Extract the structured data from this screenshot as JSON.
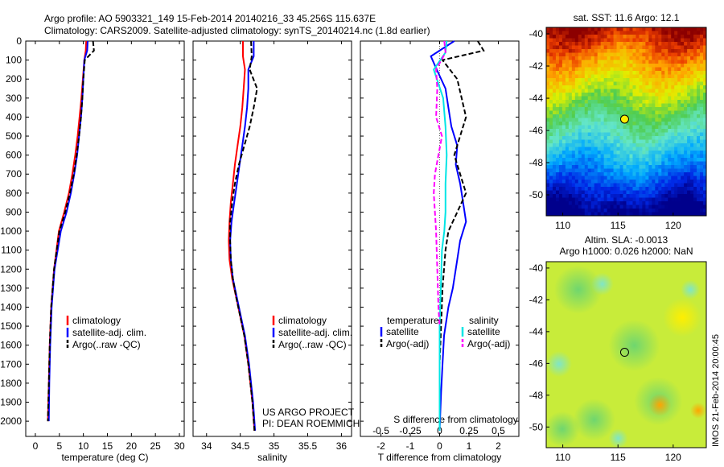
{
  "header": {
    "line1": "Argo profile: AO 5903321_149 15-Feb-2014 20140216_33 45.256S 115.637E",
    "line2": "Climatology: CARS2009. Satellite-adjusted climatology: synTS_20140214.nc (1.8d earlier)"
  },
  "credit": {
    "line1": "US ARGO PROJECT",
    "line2": "PI: DEAN ROEMMICH"
  },
  "side_label": "IMOS 21-Feb-2014 20:00:45",
  "legend_ts": [
    "climatology",
    "satellite-adj. clim.",
    "Argo(..raw -QC)"
  ],
  "legend_diff": {
    "temp_title": "temperature",
    "sal_title": "salinity",
    "items": [
      "satellite",
      "Argo(-adj)",
      "satellite",
      "Argo(-adj)"
    ]
  },
  "colors": {
    "climatology": "#ff0000",
    "satellite": "#0000ff",
    "argo": "#000000",
    "sal_satellite": "#00e5e5",
    "sal_argo": "#ff00ff"
  },
  "chart_data": [
    {
      "type": "line",
      "name": "temperature",
      "xlabel": "temperature (deg C)",
      "ylabel": "",
      "xlim": [
        -2,
        31
      ],
      "ylim": [
        2080,
        0
      ],
      "xticks": [
        0,
        5,
        10,
        15,
        20,
        25,
        30
      ],
      "yticks": [
        0,
        100,
        200,
        300,
        400,
        500,
        600,
        700,
        800,
        900,
        1000,
        1100,
        1200,
        1300,
        1400,
        1500,
        1600,
        1700,
        1800,
        1900,
        2000
      ],
      "series": [
        {
          "name": "climatology",
          "x": [
            10.6,
            10.5,
            10.2,
            9.9,
            9.6,
            9.2,
            8.8,
            8.3,
            7.7,
            7.0,
            6.0,
            4.9,
            3.9,
            3.3,
            3.0,
            2.8,
            2.6
          ],
          "y": [
            0,
            50,
            100,
            200,
            300,
            400,
            500,
            600,
            700,
            800,
            900,
            1000,
            1200,
            1400,
            1600,
            1800,
            2000
          ]
        },
        {
          "name": "satellite-adj. clim.",
          "x": [
            10.9,
            10.8,
            10.2,
            10.0,
            9.8,
            9.5,
            9.1,
            8.7,
            8.1,
            7.4,
            6.5,
            5.3,
            4.0,
            3.4,
            3.1,
            2.9,
            2.8
          ],
          "y": [
            0,
            50,
            100,
            200,
            300,
            400,
            500,
            600,
            700,
            800,
            900,
            1000,
            1200,
            1400,
            1600,
            1800,
            2000
          ]
        },
        {
          "name": "Argo(..raw -QC)",
          "dashed": true,
          "x": [
            12.0,
            12.2,
            10.3,
            10.0,
            9.8,
            9.5,
            9.1,
            8.6,
            8.0,
            7.2,
            6.2,
            5.0,
            3.9,
            3.3,
            3.0,
            2.8,
            2.6
          ],
          "y": [
            0,
            50,
            100,
            200,
            300,
            400,
            500,
            600,
            700,
            800,
            900,
            1000,
            1200,
            1400,
            1600,
            1800,
            2000
          ]
        }
      ]
    },
    {
      "type": "line",
      "name": "salinity",
      "xlabel": "salinity",
      "ylabel": "",
      "xlim": [
        33.8,
        36.15
      ],
      "ylim": [
        2080,
        0
      ],
      "xticks": [
        34,
        34.5,
        35,
        35.5,
        36
      ],
      "yticks": [
        0,
        100,
        200,
        300,
        400,
        500,
        600,
        700,
        800,
        900,
        1000,
        1100,
        1200,
        1300,
        1400,
        1500,
        1600,
        1700,
        1800,
        1900,
        2000
      ],
      "series": [
        {
          "name": "climatology",
          "x": [
            34.54,
            34.54,
            34.57,
            34.55,
            34.53,
            34.5,
            34.46,
            34.42,
            34.39,
            34.36,
            34.34,
            34.33,
            34.34,
            34.38,
            34.44,
            34.5,
            34.56,
            34.62,
            34.68,
            34.71
          ],
          "y": [
            0,
            80,
            150,
            250,
            350,
            450,
            550,
            650,
            750,
            850,
            950,
            1050,
            1150,
            1250,
            1350,
            1450,
            1550,
            1700,
            1900,
            2050
          ]
        },
        {
          "name": "satellite-adj. clim.",
          "x": [
            34.7,
            34.7,
            34.62,
            34.62,
            34.6,
            34.57,
            34.53,
            34.49,
            34.45,
            34.41,
            34.37,
            34.35,
            34.36,
            34.39,
            34.45,
            34.51,
            34.57,
            34.63,
            34.69,
            34.72
          ],
          "y": [
            0,
            80,
            150,
            250,
            350,
            450,
            550,
            650,
            750,
            850,
            950,
            1050,
            1150,
            1250,
            1350,
            1450,
            1550,
            1700,
            1900,
            2050
          ]
        },
        {
          "name": "Argo(..raw -QC)",
          "dashed": true,
          "x": [
            34.66,
            34.67,
            34.64,
            34.75,
            34.7,
            34.64,
            34.56,
            34.48,
            34.42,
            34.38,
            34.35,
            34.35,
            34.36,
            34.39,
            34.44,
            34.5,
            34.56,
            34.62,
            34.68,
            34.71
          ],
          "y": [
            0,
            80,
            150,
            250,
            350,
            450,
            550,
            650,
            750,
            850,
            950,
            1050,
            1150,
            1250,
            1350,
            1450,
            1550,
            1700,
            1900,
            2050
          ]
        }
      ]
    },
    {
      "type": "line",
      "name": "difference from climatology",
      "xlabel": "T difference from climatology",
      "x2label": "S difference from climatology",
      "ylabel": "",
      "xlim": [
        -2.7,
        2.7
      ],
      "x2lim": [
        -0.675,
        0.675
      ],
      "ylim": [
        2080,
        0
      ],
      "xticks": [
        -2,
        -1,
        0,
        1,
        2
      ],
      "x2ticks": [
        -0.5,
        -0.25,
        0,
        0.25,
        0.5
      ],
      "x2ticklabels": [
        "-0.5",
        "-0.25",
        "0",
        "0.25",
        "0.5"
      ],
      "yticks": [
        0,
        100,
        200,
        300,
        400,
        500,
        600,
        700,
        800,
        900,
        1000,
        1100,
        1200,
        1300,
        1400,
        1500,
        1600,
        1700,
        1800,
        1900,
        2000
      ],
      "series": [
        {
          "name": "temperature satellite",
          "x": [
            0.5,
            -0.3,
            -0.1,
            0.2,
            0.3,
            0.4,
            0.6,
            0.55,
            0.7,
            0.8,
            0.9,
            0.7,
            0.6,
            0.45,
            0.3,
            0.15,
            0.1,
            0.05,
            0.0
          ],
          "y": [
            0,
            80,
            150,
            250,
            350,
            450,
            550,
            650,
            750,
            850,
            950,
            1050,
            1150,
            1300,
            1400,
            1550,
            1700,
            1850,
            2050
          ]
        },
        {
          "name": "temperature Argo(-adj)",
          "dashed": true,
          "x": [
            1.3,
            1.5,
            0.1,
            0.6,
            0.9,
            0.7,
            0.5,
            0.7,
            0.9,
            0.6,
            0.3,
            0.2,
            0.1,
            0.05,
            0.0
          ],
          "y": [
            0,
            50,
            100,
            200,
            400,
            500,
            600,
            700,
            800,
            900,
            1000,
            1100,
            1300,
            1500,
            1700
          ]
        },
        {
          "name": "salinity satellite",
          "x": [
            0.06,
            0.05,
            -0.05,
            0.03,
            0.05,
            0.06,
            0.05,
            0.05,
            0.04,
            0.02,
            0.01,
            0.0,
            0.0,
            0.0
          ],
          "y": [
            0,
            60,
            150,
            300,
            450,
            600,
            750,
            900,
            1000,
            1100,
            1300,
            1500,
            1800,
            2050
          ]
        },
        {
          "name": "salinity Argo(-adj)",
          "dashed": true,
          "x": [
            0.04,
            0.05,
            -0.03,
            -0.02,
            -0.03,
            0.02,
            -0.01,
            -0.04,
            -0.05,
            -0.03,
            -0.02,
            -0.01,
            0.0
          ],
          "y": [
            0,
            60,
            150,
            250,
            400,
            500,
            600,
            700,
            800,
            1000,
            1200,
            1400,
            1500
          ]
        }
      ]
    },
    {
      "type": "heatmap",
      "name": "sat. SST",
      "title": "sat. SST: 11.6 Argo: 12.1",
      "xlim": [
        108.5,
        123
      ],
      "ylim": [
        -51.3,
        -39.6
      ],
      "xticks": [
        110,
        115,
        120
      ],
      "yticks": [
        -40,
        -42,
        -44,
        -46,
        -48,
        -50
      ],
      "marker": {
        "lon": 115.6,
        "lat": -45.3
      }
    },
    {
      "type": "heatmap",
      "name": "Altim. SLA",
      "title": "Altim. SLA: -0.0013",
      "subtitle": "Argo h1000: 0.026 h2000: NaN",
      "xlim": [
        108.5,
        123
      ],
      "ylim": [
        -51.3,
        -39.6
      ],
      "xticks": [
        110,
        115,
        120
      ],
      "yticks": [
        -40,
        -42,
        -44,
        -46,
        -48,
        -50
      ],
      "marker": {
        "lon": 115.6,
        "lat": -45.3
      }
    }
  ]
}
